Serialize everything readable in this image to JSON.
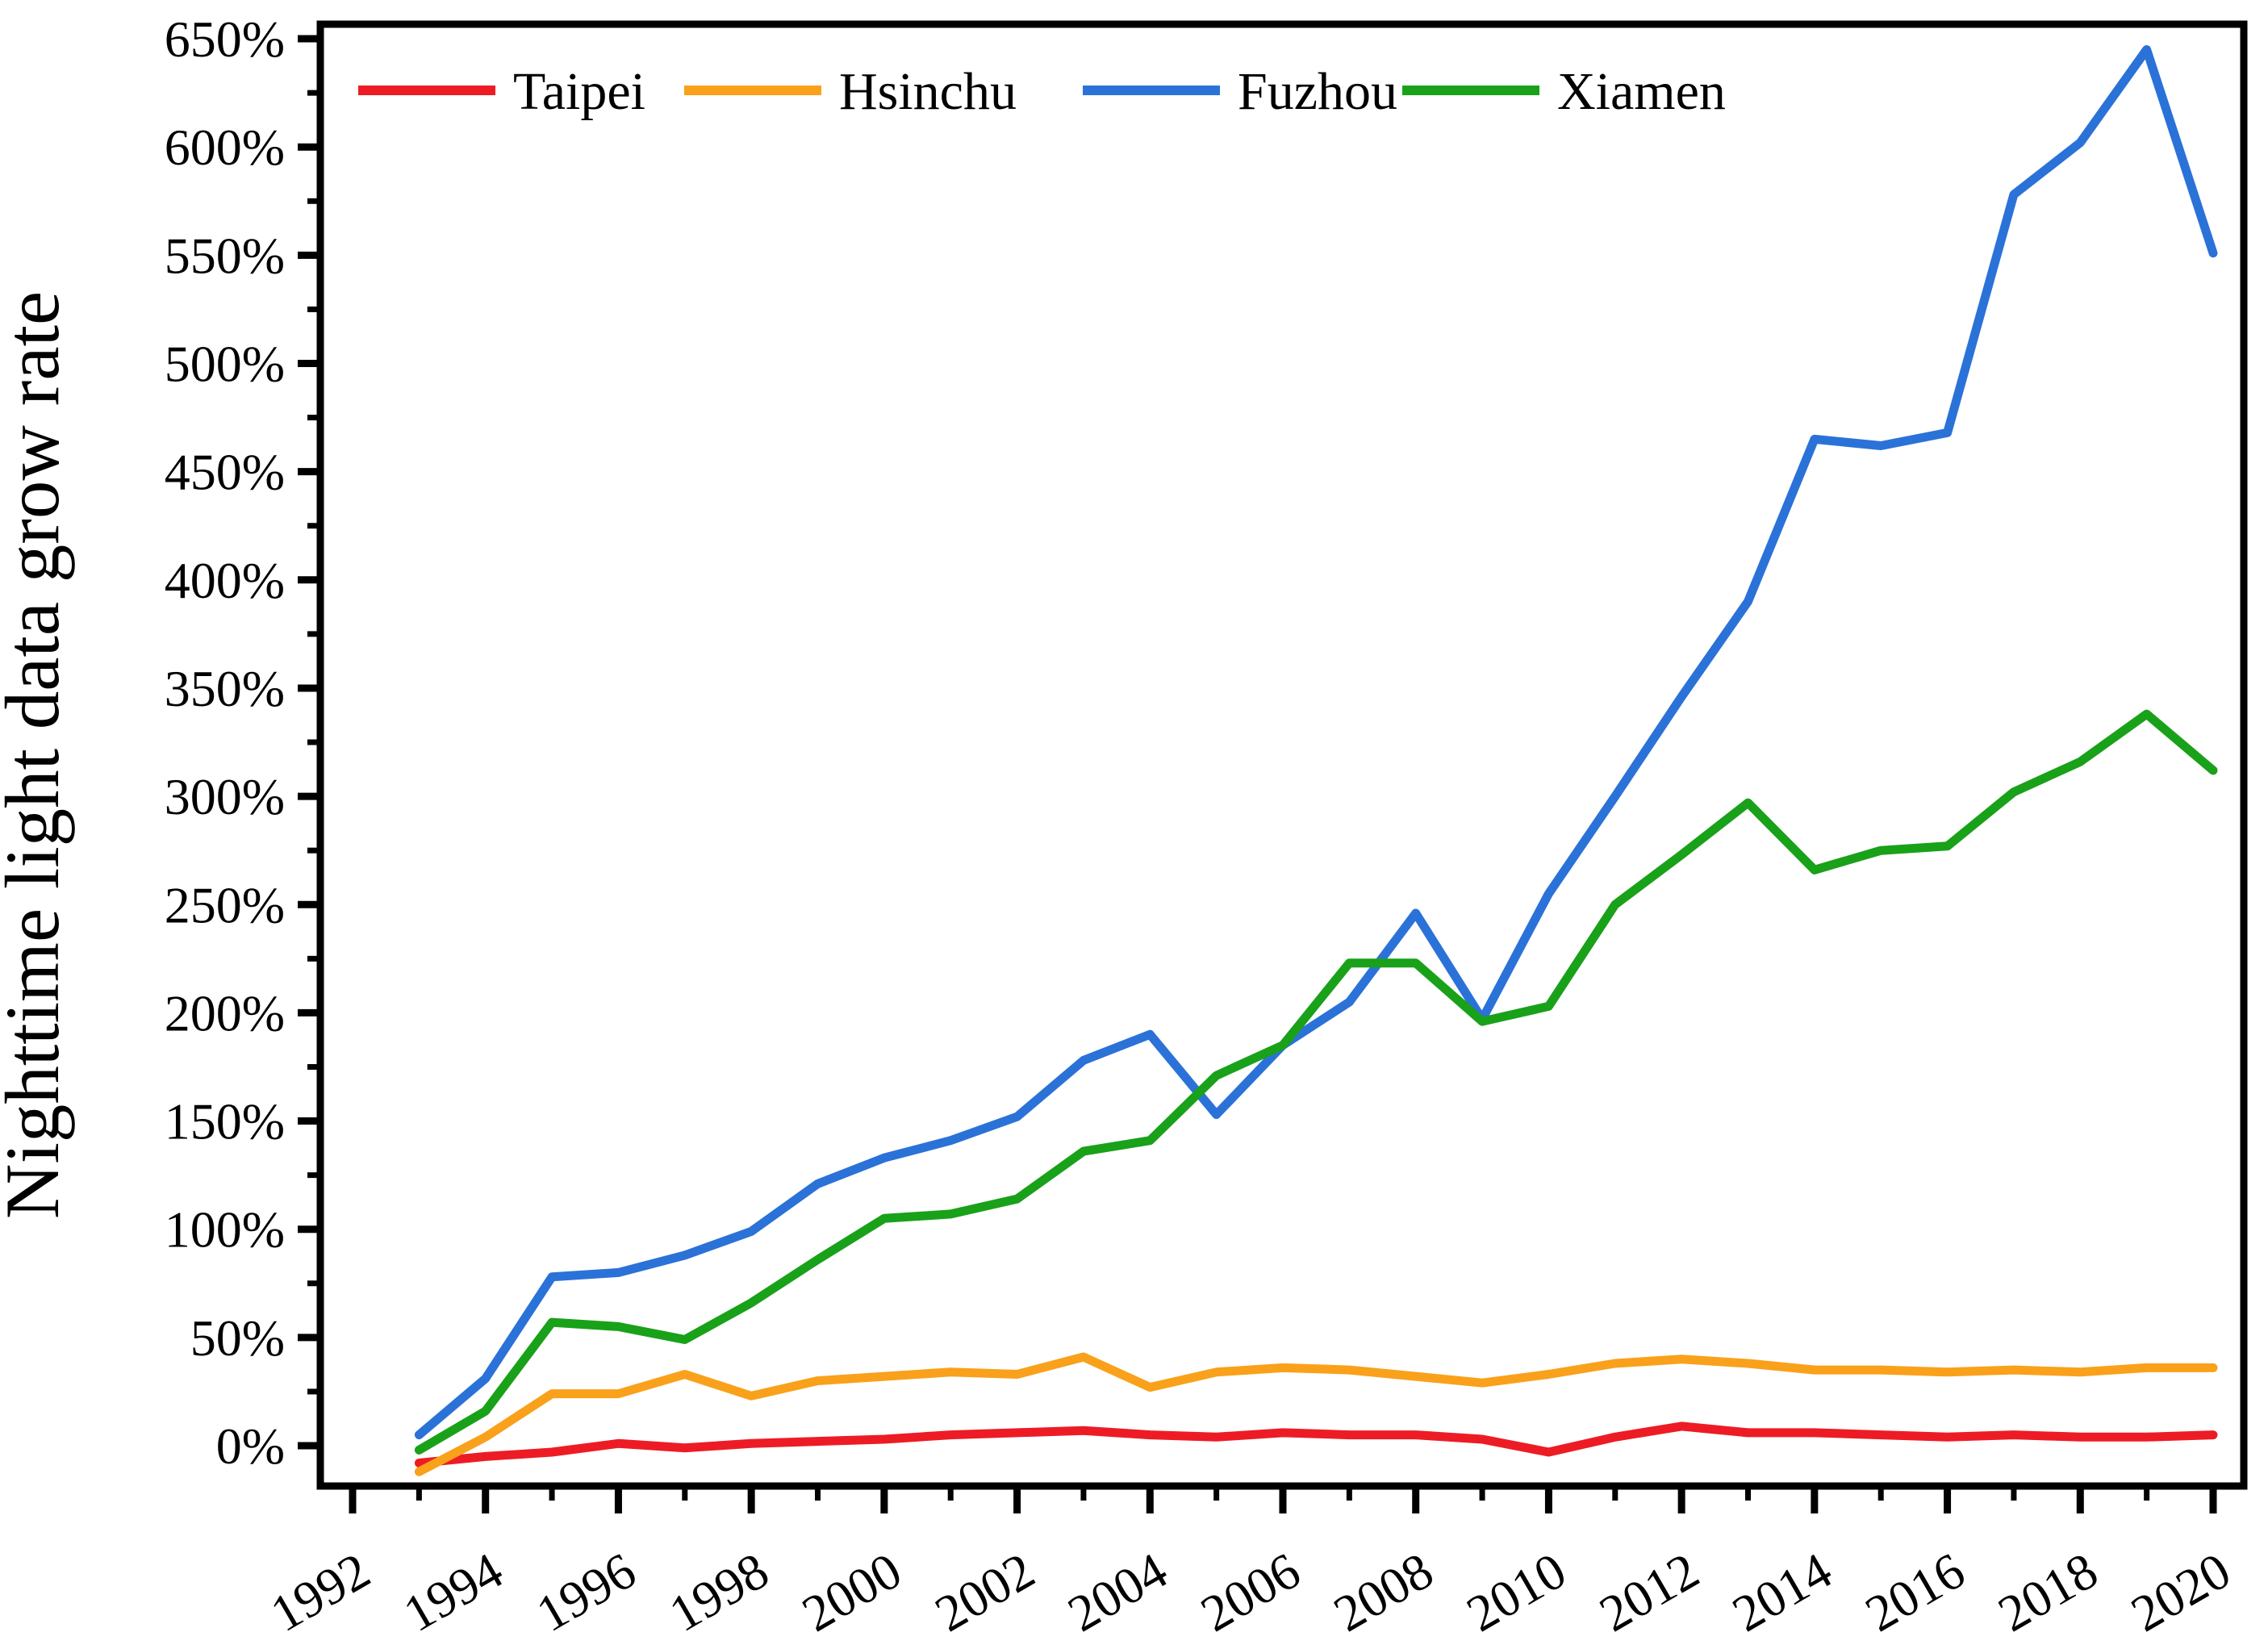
{
  "chart_data": {
    "type": "line",
    "title": "",
    "xlabel": "",
    "ylabel": "Nighttime light data grow rate",
    "unit": "%",
    "grid": false,
    "legend_position": "top-inside",
    "x": [
      1993,
      1994,
      1995,
      1996,
      1997,
      1998,
      1999,
      2000,
      2001,
      2002,
      2003,
      2004,
      2005,
      2006,
      2007,
      2008,
      2009,
      2010,
      2011,
      2012,
      2013,
      2014,
      2015,
      2016,
      2017,
      2018,
      2019,
      2020
    ],
    "series": [
      {
        "name": "Taipei",
        "color": "#ED1C24",
        "values": [
          -8,
          -5,
          -3,
          1,
          -1,
          1,
          2,
          3,
          5,
          6,
          7,
          5,
          4,
          6,
          5,
          5,
          3,
          -3,
          4,
          9,
          6,
          6,
          5,
          4,
          5,
          4,
          4,
          5
        ]
      },
      {
        "name": "Hsinchu",
        "color": "#F9A11B",
        "values": [
          -12,
          4,
          24,
          24,
          33,
          23,
          30,
          32,
          34,
          33,
          41,
          27,
          34,
          36,
          35,
          32,
          29,
          33,
          38,
          40,
          38,
          35,
          35,
          34,
          35,
          34,
          36,
          36
        ]
      },
      {
        "name": "Fuzhou",
        "color": "#2B72D8",
        "values": [
          5,
          31,
          78,
          80,
          88,
          99,
          121,
          133,
          141,
          152,
          178,
          190,
          153,
          185,
          205,
          246,
          197,
          255,
          300,
          346,
          390,
          465,
          462,
          468,
          578,
          602,
          645,
          551
        ]
      },
      {
        "name": "Xiamen",
        "color": "#19A119",
        "values": [
          -2,
          16,
          57,
          55,
          49,
          66,
          86,
          105,
          107,
          114,
          136,
          141,
          171,
          185,
          223,
          223,
          196,
          203,
          250,
          273,
          297,
          266,
          275,
          277,
          302,
          316,
          338,
          312
        ]
      }
    ],
    "y_axis": {
      "tick_labels": [
        "0%",
        "50%",
        "100%",
        "150%",
        "200%",
        "250%",
        "300%",
        "350%",
        "400%",
        "450%",
        "500%",
        "550%",
        "600%",
        "650%"
      ],
      "tick_values": [
        0,
        50,
        100,
        150,
        200,
        250,
        300,
        350,
        400,
        450,
        500,
        550,
        600,
        650
      ],
      "minor_tick_values": [
        25,
        75,
        125,
        175,
        225,
        275,
        325,
        375,
        425,
        475,
        525,
        575,
        625
      ],
      "range": [
        -18.6,
        656.7
      ]
    },
    "x_axis": {
      "tick_years": [
        1992,
        1994,
        1996,
        1998,
        2000,
        2002,
        2004,
        2006,
        2008,
        2010,
        2012,
        2014,
        2016,
        2018,
        2020
      ],
      "minor_tick_years": [
        1993,
        1995,
        1997,
        1999,
        2001,
        2003,
        2005,
        2007,
        2009,
        2011,
        2013,
        2015,
        2017,
        2019
      ],
      "range": [
        1991.5,
        2020.5
      ]
    },
    "axis_color": "#000000",
    "background_color": "#ffffff"
  }
}
